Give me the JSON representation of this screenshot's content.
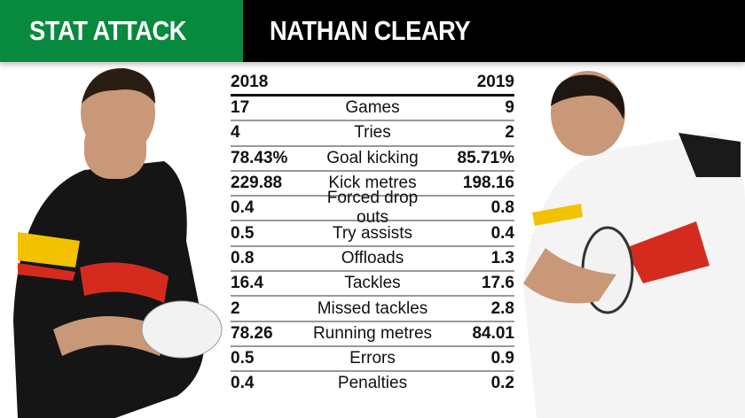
{
  "header": {
    "label": "STAT ATTACK",
    "title": "NATHAN CLEARY"
  },
  "colors": {
    "accent": "#078a3e",
    "header_bg": "#000000"
  },
  "images": {
    "left": "player-photo-2018-black-jersey",
    "right": "player-photo-2019-white-jersey"
  },
  "table": {
    "col_left": "2018",
    "col_right": "2019",
    "rows": [
      {
        "stat": "Games",
        "y2018": "17",
        "y2019": "9"
      },
      {
        "stat": "Tries",
        "y2018": "4",
        "y2019": "2"
      },
      {
        "stat": "Goal kicking",
        "y2018": "78.43%",
        "y2019": "85.71%"
      },
      {
        "stat": "Kick metres",
        "y2018": "229.88",
        "y2019": "198.16"
      },
      {
        "stat": "Forced drop outs",
        "y2018": "0.4",
        "y2019": "0.8"
      },
      {
        "stat": "Try assists",
        "y2018": "0.5",
        "y2019": "0.4"
      },
      {
        "stat": "Offloads",
        "y2018": "0.8",
        "y2019": "1.3"
      },
      {
        "stat": "Tackles",
        "y2018": "16.4",
        "y2019": "17.6"
      },
      {
        "stat": "Missed tackles",
        "y2018": "2",
        "y2019": "2.8"
      },
      {
        "stat": "Running metres",
        "y2018": "78.26",
        "y2019": "84.01"
      },
      {
        "stat": "Errors",
        "y2018": "0.5",
        "y2019": "0.9"
      },
      {
        "stat": "Penalties",
        "y2018": "0.4",
        "y2019": "0.2"
      }
    ]
  }
}
